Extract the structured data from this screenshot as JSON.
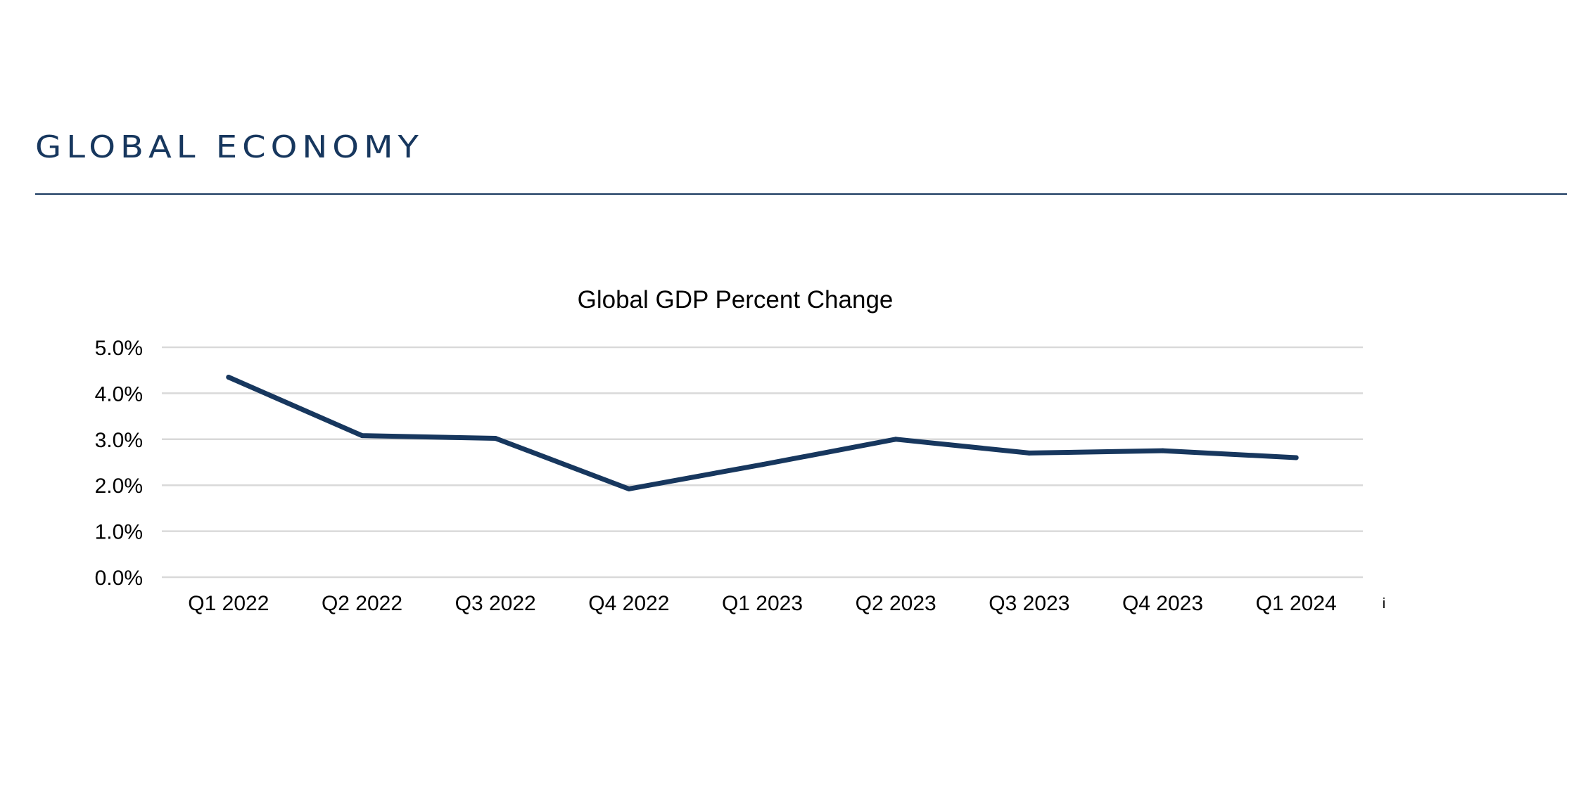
{
  "header": {
    "title": "Global Economy"
  },
  "colors": {
    "accent": "#17375e",
    "gridline": "#d9d9d9"
  },
  "chart_data": {
    "type": "line",
    "title": "Global GDP Percent Change",
    "xlabel": "",
    "ylabel": "",
    "categories": [
      "Q1 2022",
      "Q2 2022",
      "Q3 2022",
      "Q4 2022",
      "Q1 2023",
      "Q2 2023",
      "Q3 2023",
      "Q4 2023",
      "Q1 2024"
    ],
    "series": [
      {
        "name": "Global GDP Percent Change",
        "values": [
          4.35,
          3.08,
          3.02,
          1.92,
          2.45,
          3.0,
          2.7,
          2.75,
          2.6
        ],
        "color": "#17375e"
      }
    ],
    "ylim": [
      0,
      5
    ],
    "yticks": [
      0,
      1,
      2,
      3,
      4,
      5
    ],
    "ytick_labels": [
      "0.0%",
      "1.0%",
      "2.0%",
      "3.0%",
      "4.0%",
      "5.0%"
    ],
    "grid": true,
    "legend": "none",
    "footnote_mark": "i"
  }
}
